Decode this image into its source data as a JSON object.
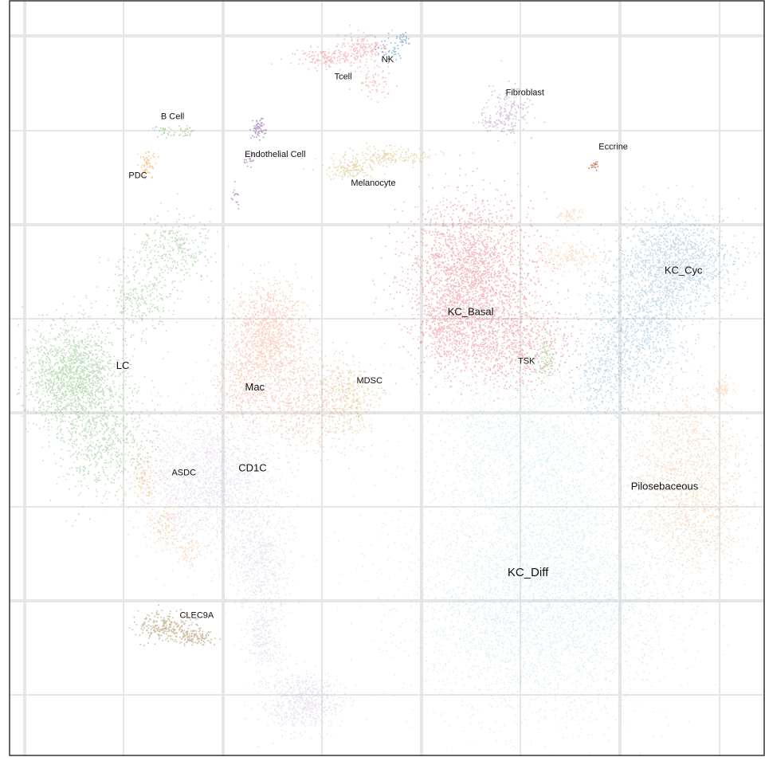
{
  "chart_data": {
    "type": "scatter",
    "title": "",
    "xlabel": "",
    "ylabel": "",
    "grid": true,
    "legend": "none",
    "xlim": [
      0,
      100
    ],
    "ylim": [
      0,
      100
    ],
    "clusters": [
      {
        "name": "NK",
        "label": "NK",
        "color": "#2f7fb4",
        "center": [
          50.1,
          92.2
        ],
        "size": 11
      },
      {
        "name": "Tcell",
        "label": "Tcell",
        "color": "#e5797a",
        "center": [
          44.2,
          89.9
        ],
        "size": 11
      },
      {
        "name": "Fibroblast",
        "label": "Fibroblast",
        "color": "#9b7ab9",
        "center": [
          68.3,
          87.8
        ],
        "size": 11
      },
      {
        "name": "B Cell",
        "label": "B Cell",
        "color": "#7dbb6a",
        "center": [
          21.6,
          84.6
        ],
        "size": 11
      },
      {
        "name": "Endothelial Cell",
        "label": "Endothelial Cell",
        "color": "#7b4d97",
        "center": [
          35.2,
          79.6
        ],
        "size": 11
      },
      {
        "name": "Eccrine",
        "label": "Eccrine",
        "color": "#b2471b",
        "center": [
          80.0,
          80.6
        ],
        "size": 11
      },
      {
        "name": "PDC",
        "label": "PDC",
        "color": "#f09a3c",
        "center": [
          17.0,
          76.8
        ],
        "size": 11
      },
      {
        "name": "Melanocyte",
        "label": "Melanocyte",
        "color": "#d4b468",
        "center": [
          48.2,
          75.8
        ],
        "size": 11
      },
      {
        "name": "KC_Cyc",
        "label": "KC_Cyc",
        "color": "#3e87c0",
        "center": [
          89.3,
          64.2
        ],
        "size": 13
      },
      {
        "name": "KC_Basal",
        "label": "KC_Basal",
        "color": "#e03c44",
        "center": [
          61.1,
          58.7
        ],
        "size": 13
      },
      {
        "name": "TSK",
        "label": "TSK",
        "color": "#8ac47a",
        "center": [
          68.5,
          52.2
        ],
        "size": 11
      },
      {
        "name": "LC",
        "label": "LC",
        "color": "#4fa144",
        "center": [
          15.0,
          51.6
        ],
        "size": 13
      },
      {
        "name": "MDSC",
        "label": "MDSC",
        "color": "#d9c07a",
        "center": [
          47.7,
          49.6
        ],
        "size": 11
      },
      {
        "name": "Mac",
        "label": "Mac",
        "color": "#ea7448",
        "center": [
          32.5,
          48.7
        ],
        "size": 13
      },
      {
        "name": "CD1C",
        "label": "CD1C",
        "color": "#c9b6d6",
        "center": [
          32.2,
          38.0
        ],
        "size": 13
      },
      {
        "name": "ASDC",
        "label": "ASDC",
        "color": "#f7b678",
        "center": [
          23.1,
          37.4
        ],
        "size": 11
      },
      {
        "name": "Pilosebaceous",
        "label": "Pilosebaceous",
        "color": "#f2a76a",
        "center": [
          86.8,
          35.6
        ],
        "size": 13
      },
      {
        "name": "KC_Diff",
        "label": "KC_Diff",
        "color": "#a9d4e6",
        "center": [
          68.7,
          24.2
        ],
        "size": 15
      },
      {
        "name": "CLEC9A",
        "label": "CLEC9A",
        "color": "#a68457",
        "center": [
          24.8,
          18.5
        ],
        "size": 11
      }
    ]
  }
}
